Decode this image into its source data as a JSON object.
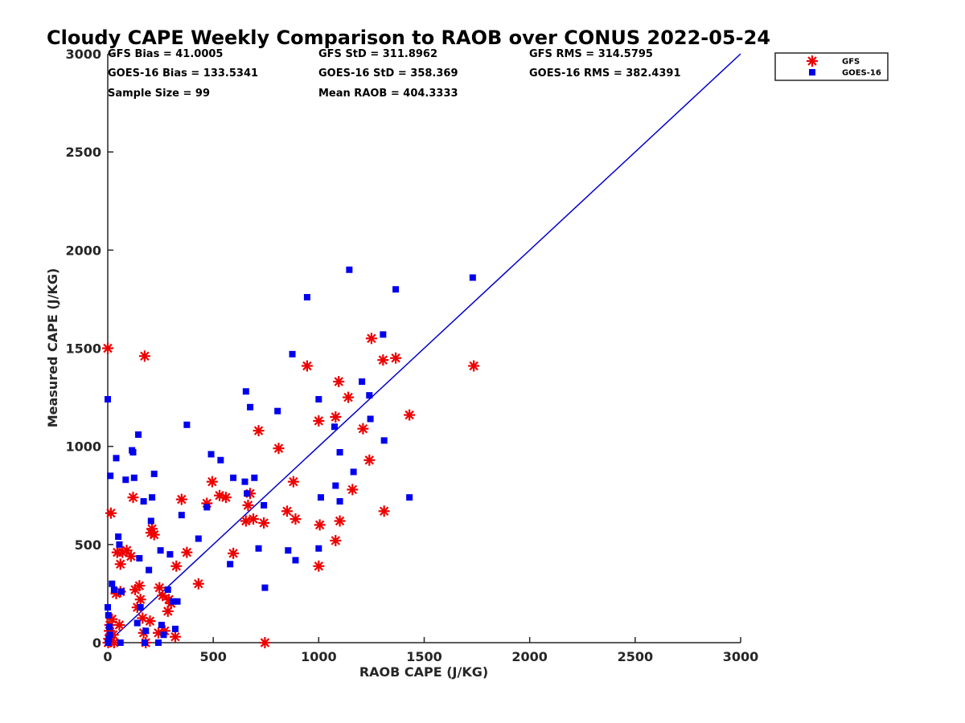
{
  "chart_data": {
    "type": "scatter",
    "title": "Cloudy CAPE Weekly Comparison to RAOB over CONUS 2022-05-24",
    "xlabel": "RAOB CAPE (J/KG)",
    "ylabel": "Measured CAPE (J/KG)",
    "xlim": [
      0,
      3000
    ],
    "ylim": [
      0,
      3000
    ],
    "xticks": [
      "0",
      "500",
      "1000",
      "1500",
      "2000",
      "2500",
      "3000"
    ],
    "yticks": [
      "0",
      "500",
      "1000",
      "1500",
      "2000",
      "2500",
      "3000"
    ],
    "grid": false,
    "legend_position": "top-right",
    "stats": [
      [
        "GFS Bias = 41.0005",
        "GFS StD = 311.8962",
        "GFS RMS = 314.5795"
      ],
      [
        "GOES-16 Bias = 133.5341",
        "GOES-16 StD = 358.369",
        "GOES-16 RMS = 382.4391"
      ],
      [
        "Sample Size = 99",
        "Mean RAOB = 404.3333",
        ""
      ]
    ],
    "one_to_one_line": {
      "x": [
        0,
        3000
      ],
      "y": [
        0,
        3000
      ],
      "color": "#0000cc"
    },
    "series": [
      {
        "name": "GFS",
        "marker": "asterisk",
        "color": "#ee0000",
        "points": [
          [
            0,
            1500
          ],
          [
            2,
            0
          ],
          [
            5,
            20
          ],
          [
            8,
            60
          ],
          [
            10,
            90
          ],
          [
            12,
            5
          ],
          [
            15,
            660
          ],
          [
            20,
            120
          ],
          [
            25,
            40
          ],
          [
            30,
            0
          ],
          [
            40,
            250
          ],
          [
            45,
            460
          ],
          [
            55,
            90
          ],
          [
            60,
            400
          ],
          [
            60,
            260
          ],
          [
            70,
            460
          ],
          [
            90,
            470
          ],
          [
            110,
            440
          ],
          [
            120,
            740
          ],
          [
            130,
            270
          ],
          [
            140,
            180
          ],
          [
            150,
            290
          ],
          [
            155,
            220
          ],
          [
            165,
            125
          ],
          [
            170,
            50
          ],
          [
            175,
            1460
          ],
          [
            180,
            0
          ],
          [
            200,
            110
          ],
          [
            205,
            560
          ],
          [
            210,
            580
          ],
          [
            220,
            550
          ],
          [
            240,
            50
          ],
          [
            245,
            280
          ],
          [
            260,
            240
          ],
          [
            270,
            60
          ],
          [
            285,
            160
          ],
          [
            290,
            220
          ],
          [
            300,
            200
          ],
          [
            320,
            30
          ],
          [
            325,
            390
          ],
          [
            350,
            730
          ],
          [
            375,
            460
          ],
          [
            430,
            300
          ],
          [
            470,
            710
          ],
          [
            495,
            820
          ],
          [
            530,
            750
          ],
          [
            560,
            740
          ],
          [
            595,
            455
          ],
          [
            655,
            620
          ],
          [
            665,
            700
          ],
          [
            675,
            760
          ],
          [
            690,
            630
          ],
          [
            715,
            1080
          ],
          [
            740,
            610
          ],
          [
            745,
            0
          ],
          [
            810,
            990
          ],
          [
            850,
            670
          ],
          [
            880,
            820
          ],
          [
            890,
            630
          ],
          [
            945,
            1410
          ],
          [
            1000,
            390
          ],
          [
            1000,
            1130
          ],
          [
            1005,
            600
          ],
          [
            1080,
            520
          ],
          [
            1080,
            1150
          ],
          [
            1095,
            1330
          ],
          [
            1100,
            620
          ],
          [
            1140,
            1250
          ],
          [
            1160,
            780
          ],
          [
            1210,
            1090
          ],
          [
            1240,
            930
          ],
          [
            1250,
            1550
          ],
          [
            1305,
            1440
          ],
          [
            1310,
            670
          ],
          [
            1365,
            1450
          ],
          [
            1430,
            1160
          ],
          [
            1735,
            1410
          ]
        ]
      },
      {
        "name": "GOES-16",
        "marker": "square",
        "color": "#0000ee",
        "points": [
          [
            0,
            1240
          ],
          [
            0,
            180
          ],
          [
            2,
            0
          ],
          [
            3,
            140
          ],
          [
            5,
            20
          ],
          [
            8,
            80
          ],
          [
            10,
            40
          ],
          [
            12,
            850
          ],
          [
            20,
            300
          ],
          [
            30,
            270
          ],
          [
            40,
            940
          ],
          [
            50,
            540
          ],
          [
            55,
            500
          ],
          [
            60,
            0
          ],
          [
            65,
            260
          ],
          [
            85,
            830
          ],
          [
            115,
            980
          ],
          [
            120,
            970
          ],
          [
            125,
            840
          ],
          [
            140,
            100
          ],
          [
            145,
            1060
          ],
          [
            150,
            430
          ],
          [
            155,
            180
          ],
          [
            170,
            720
          ],
          [
            175,
            0
          ],
          [
            180,
            60
          ],
          [
            195,
            370
          ],
          [
            205,
            620
          ],
          [
            210,
            740
          ],
          [
            220,
            860
          ],
          [
            240,
            0
          ],
          [
            250,
            470
          ],
          [
            255,
            90
          ],
          [
            265,
            40
          ],
          [
            285,
            270
          ],
          [
            295,
            450
          ],
          [
            310,
            210
          ],
          [
            320,
            70
          ],
          [
            330,
            210
          ],
          [
            350,
            650
          ],
          [
            375,
            1110
          ],
          [
            430,
            530
          ],
          [
            470,
            690
          ],
          [
            490,
            960
          ],
          [
            535,
            930
          ],
          [
            580,
            400
          ],
          [
            595,
            840
          ],
          [
            650,
            820
          ],
          [
            655,
            1280
          ],
          [
            660,
            760
          ],
          [
            675,
            1200
          ],
          [
            695,
            840
          ],
          [
            715,
            480
          ],
          [
            740,
            700
          ],
          [
            745,
            280
          ],
          [
            805,
            1180
          ],
          [
            855,
            470
          ],
          [
            875,
            1470
          ],
          [
            890,
            420
          ],
          [
            945,
            1760
          ],
          [
            1000,
            1240
          ],
          [
            1000,
            480
          ],
          [
            1010,
            740
          ],
          [
            1075,
            1100
          ],
          [
            1080,
            800
          ],
          [
            1100,
            970
          ],
          [
            1100,
            720
          ],
          [
            1145,
            1900
          ],
          [
            1165,
            870
          ],
          [
            1205,
            1330
          ],
          [
            1240,
            1260
          ],
          [
            1245,
            1140
          ],
          [
            1305,
            1570
          ],
          [
            1310,
            1030
          ],
          [
            1365,
            1800
          ],
          [
            1430,
            740
          ],
          [
            1730,
            1860
          ]
        ]
      }
    ]
  }
}
